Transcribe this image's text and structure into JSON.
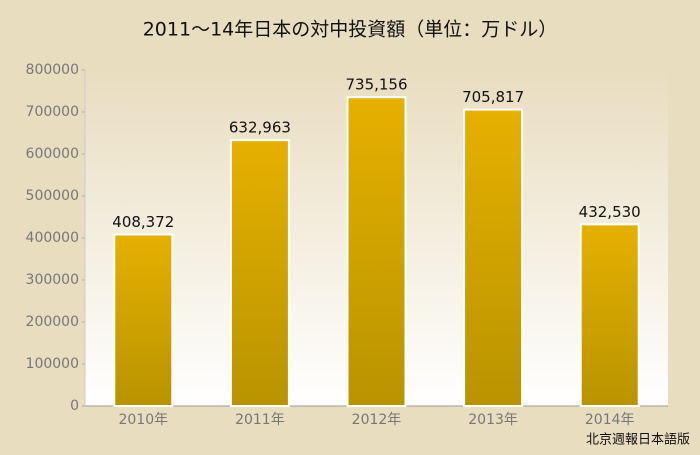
{
  "chart_data": {
    "type": "bar",
    "title": "2011～14年日本の対中投資額（単位：万ドル）",
    "categories": [
      "2010年",
      "2011年",
      "2012年",
      "2013年",
      "2014年"
    ],
    "values": [
      408372,
      632963,
      735156,
      705817,
      432530
    ],
    "value_labels": [
      "408,372",
      "632,963",
      "735,156",
      "705,817",
      "432,530"
    ],
    "color": "#d4a400",
    "ylim": [
      0,
      800000
    ],
    "yticks": [
      0,
      100000,
      200000,
      300000,
      400000,
      500000,
      600000,
      700000,
      800000
    ],
    "grid": false,
    "source": "北京週報日本語版"
  }
}
